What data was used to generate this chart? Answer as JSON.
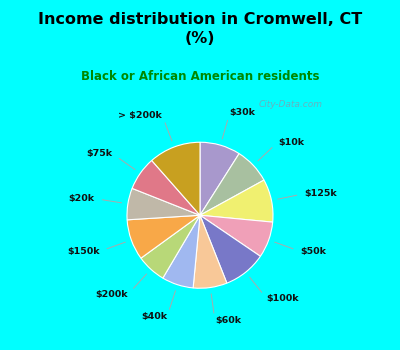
{
  "title": "Income distribution in Cromwell, CT\n(%)",
  "subtitle": "Black or African American residents",
  "labels": [
    "$30k",
    "$10k",
    "$125k",
    "$50k",
    "$100k",
    "$60k",
    "$40k",
    "$200k",
    "$150k",
    "$20k",
    "$75k",
    "> $200k"
  ],
  "values": [
    9.0,
    8.0,
    9.5,
    8.0,
    9.5,
    7.5,
    7.0,
    6.5,
    9.0,
    7.0,
    7.5,
    11.5
  ],
  "colors": [
    "#a898cc",
    "#a8c0a0",
    "#f0f070",
    "#f0a0b8",
    "#7878c8",
    "#f8c898",
    "#a0b8f0",
    "#b8d878",
    "#f8a848",
    "#c0b8a8",
    "#e07888",
    "#c8a020"
  ],
  "bg_top_color": "#00ffff",
  "chart_bg_color": "#c8f0d8",
  "title_color": "#000000",
  "subtitle_color": "#008800",
  "watermark": "City-Data.com",
  "startangle": 90
}
